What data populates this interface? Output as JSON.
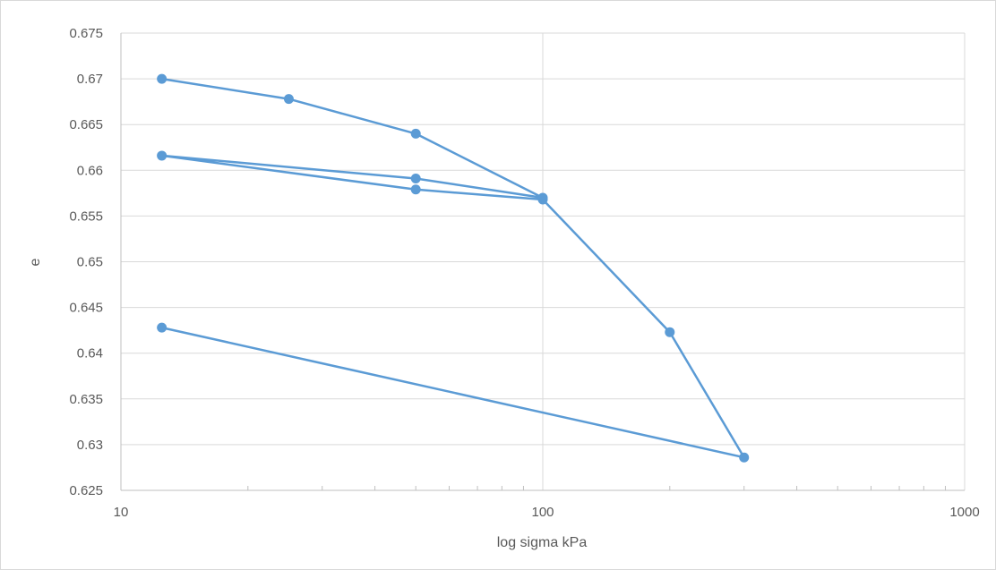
{
  "chart_data": {
    "type": "scatter",
    "title": "",
    "xlabel": "log sigma kPa",
    "ylabel": "e",
    "x_scale": "log",
    "xlim": [
      10,
      1000
    ],
    "ylim": [
      0.625,
      0.675
    ],
    "x_ticks": [
      "10",
      "100",
      "1000"
    ],
    "y_ticks": [
      "0.625",
      "0.63",
      "0.635",
      "0.64",
      "0.645",
      "0.65",
      "0.655",
      "0.66",
      "0.665",
      "0.67",
      "0.675"
    ],
    "grid": true,
    "legend": "none",
    "color": "#5b9bd5",
    "series": [
      {
        "points": [
          [
            12.5,
            0.67
          ],
          [
            25,
            0.6678
          ],
          [
            50,
            0.664
          ],
          [
            100,
            0.657
          ],
          [
            50,
            0.6591
          ],
          [
            12.5,
            0.6616
          ],
          [
            50,
            0.6579
          ],
          [
            100,
            0.6568
          ],
          [
            200,
            0.6423
          ],
          [
            300,
            0.6286
          ],
          [
            12.5,
            0.6428
          ]
        ]
      }
    ]
  }
}
